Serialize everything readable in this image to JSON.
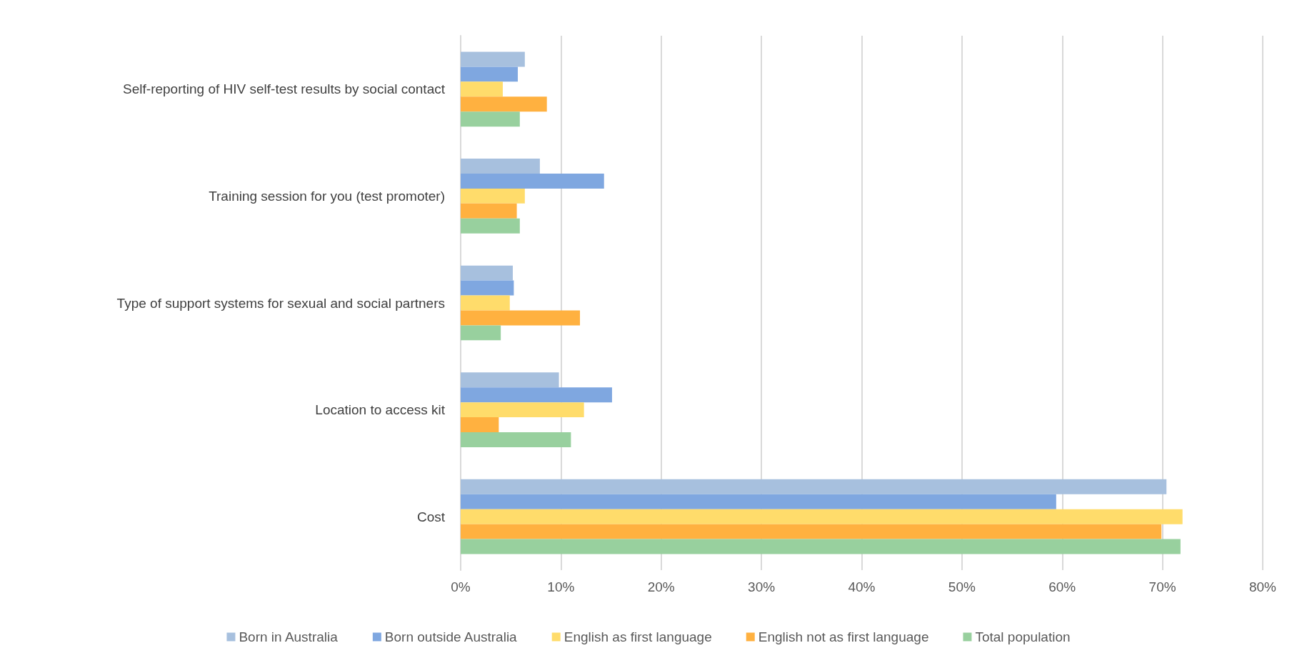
{
  "chart_data": {
    "type": "bar",
    "orientation": "horizontal",
    "categories": [
      "Self-reporting of HIV self-test results by social contact",
      "Training session for you (test promoter)",
      "Type of support systems for sexual and social partners",
      "Location to access kit",
      "Cost"
    ],
    "series": [
      {
        "name": "Born in Australia",
        "color": "#a7c0de",
        "values": [
          6.4,
          7.9,
          5.2,
          9.8,
          70.4
        ]
      },
      {
        "name": "Born outside Australia",
        "color": "#7fa7e0",
        "values": [
          5.7,
          14.3,
          5.3,
          15.1,
          59.4
        ]
      },
      {
        "name": "English as first language",
        "color": "#ffdc6b",
        "values": [
          4.2,
          6.4,
          4.9,
          12.3,
          72.0
        ]
      },
      {
        "name": "English not as first language",
        "color": "#ffb140",
        "values": [
          8.6,
          5.6,
          11.9,
          3.8,
          69.9
        ]
      },
      {
        "name": "Total population",
        "color": "#98d09e",
        "values": [
          5.9,
          5.9,
          4.0,
          11.0,
          71.8
        ]
      }
    ],
    "xlim": [
      0,
      80
    ],
    "xticks": [
      {
        "value": 0,
        "label": "0%"
      },
      {
        "value": 10,
        "label": "10%"
      },
      {
        "value": 20,
        "label": "20%"
      },
      {
        "value": 30,
        "label": "30%"
      },
      {
        "value": 40,
        "label": "40%"
      },
      {
        "value": 50,
        "label": "50%"
      },
      {
        "value": 60,
        "label": "60%"
      },
      {
        "value": 70,
        "label": "70%"
      },
      {
        "value": 80,
        "label": "80%"
      }
    ],
    "grid": "x",
    "legend": "bottom"
  }
}
